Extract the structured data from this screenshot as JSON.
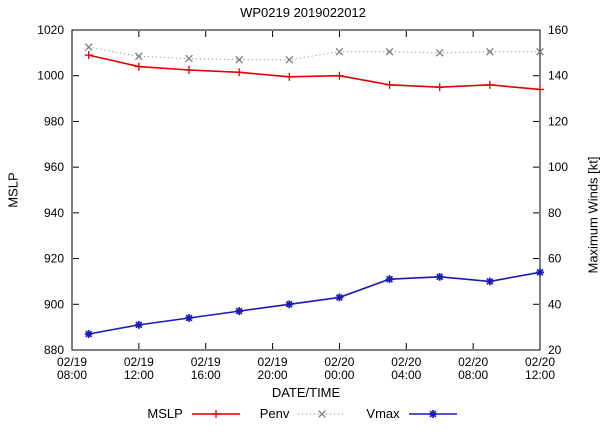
{
  "chart_data": {
    "type": "line",
    "title": "WP0219 2019022012",
    "xlabel": "DATE/TIME",
    "ylabel_left": "MSLP",
    "ylabel_right": "Maximum Winds [kt]",
    "grid": false,
    "legend_position": "bottom",
    "x_domain": [
      8,
      36
    ],
    "x_hours": [
      9,
      12,
      15,
      18,
      21,
      24,
      27,
      30,
      33,
      36
    ],
    "x_ticks": [
      {
        "hour": 8,
        "label": [
          "02/19",
          "08:00"
        ]
      },
      {
        "hour": 12,
        "label": [
          "02/19",
          "12:00"
        ]
      },
      {
        "hour": 16,
        "label": [
          "02/19",
          "16:00"
        ]
      },
      {
        "hour": 20,
        "label": [
          "02/19",
          "20:00"
        ]
      },
      {
        "hour": 24,
        "label": [
          "02/20",
          "00:00"
        ]
      },
      {
        "hour": 28,
        "label": [
          "02/20",
          "04:00"
        ]
      },
      {
        "hour": 32,
        "label": [
          "02/20",
          "08:00"
        ]
      },
      {
        "hour": 36,
        "label": [
          "02/20",
          "12:00"
        ]
      }
    ],
    "y_left": {
      "min": 880,
      "max": 1020
    },
    "y_right": {
      "min": 20,
      "max": 160
    },
    "y_left_ticks": [
      880,
      900,
      920,
      940,
      960,
      980,
      1000,
      1020
    ],
    "y_right_ticks": [
      20,
      40,
      60,
      80,
      100,
      120,
      140,
      160
    ],
    "series": [
      {
        "name": "MSLP",
        "axis": "left",
        "color": "#e00000",
        "marker": "plus",
        "line": "solid",
        "values": [
          1009,
          1004,
          1002.5,
          1001.5,
          999.5,
          1000,
          996,
          995,
          996,
          994
        ]
      },
      {
        "name": "Penv",
        "axis": "left",
        "color": "#7f7f7f",
        "marker": "cross",
        "line": "dotted",
        "values": [
          1012.5,
          1008.5,
          1007.5,
          1007,
          1007,
          1010.5,
          1010.5,
          1010,
          1010.5,
          1010.5
        ]
      },
      {
        "name": "Vmax",
        "axis": "right",
        "color": "#1a1ab8",
        "marker": "asterisk",
        "line": "solid",
        "values": [
          27,
          31,
          34,
          37,
          40,
          43,
          51,
          52,
          50,
          54
        ]
      }
    ]
  }
}
